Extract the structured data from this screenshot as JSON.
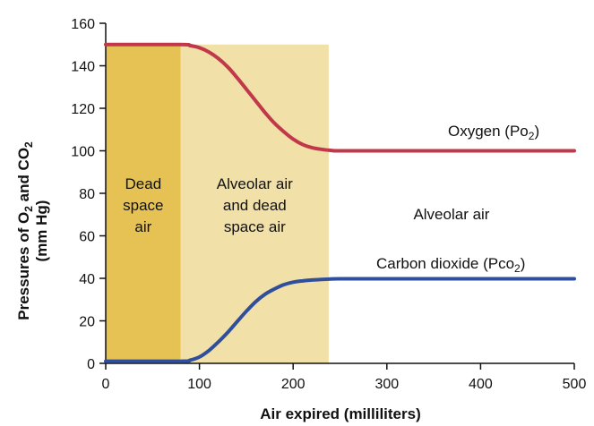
{
  "chart_data": {
    "type": "line",
    "xlabel": "Air expired (milliliters)",
    "ylabel_parts": {
      "line1_main": "Pressures of O",
      "line1_sub1": "2",
      "line1_mid": " and CO",
      "line1_sub2": "2",
      "line2": "(mm Hg)"
    },
    "xlim": [
      0,
      500
    ],
    "ylim": [
      0,
      160
    ],
    "x_ticks": [
      0,
      100,
      200,
      300,
      400,
      500
    ],
    "y_ticks": [
      0,
      20,
      40,
      60,
      80,
      100,
      120,
      140,
      160
    ],
    "grid": false,
    "regions": [
      {
        "x0": 0,
        "x1": 80,
        "color": "#e6c255",
        "label_lines": [
          "Dead",
          "space",
          "air"
        ]
      },
      {
        "x0": 80,
        "x1": 238,
        "color": "#f1e0a8",
        "label_lines": [
          "Alveolar air",
          "and dead",
          "space air"
        ]
      },
      {
        "x0": 238,
        "x1": 500,
        "color": "#ffffff",
        "label_lines": [
          "Alveolar air"
        ]
      }
    ],
    "series": [
      {
        "name": "Oxygen",
        "symbol": "Po",
        "symbol_sub": "2",
        "color": "#c0384a",
        "x": [
          0,
          80,
          90,
          100,
          110,
          120,
          130,
          140,
          150,
          160,
          170,
          180,
          190,
          200,
          210,
          220,
          230,
          240,
          250,
          300,
          400,
          500
        ],
        "y": [
          150,
          150,
          149.5,
          148.5,
          146.5,
          143.5,
          139.5,
          134.5,
          129,
          123.5,
          118,
          113,
          109,
          105.5,
          103,
          101.5,
          100.7,
          100.2,
          100,
          100,
          100,
          100
        ]
      },
      {
        "name": "Carbon dioxide",
        "symbol": "Pco",
        "symbol_sub": "2",
        "color": "#2f4f9c",
        "x": [
          0,
          80,
          90,
          100,
          110,
          120,
          130,
          140,
          150,
          160,
          170,
          180,
          190,
          200,
          210,
          220,
          230,
          240,
          250,
          300,
          400,
          500
        ],
        "y": [
          1,
          1,
          1.5,
          3,
          6,
          10,
          14.5,
          19.5,
          24.5,
          29,
          32.5,
          35,
          37,
          38.2,
          38.8,
          39.2,
          39.5,
          39.7,
          39.8,
          39.8,
          39.8,
          39.8
        ]
      }
    ]
  }
}
